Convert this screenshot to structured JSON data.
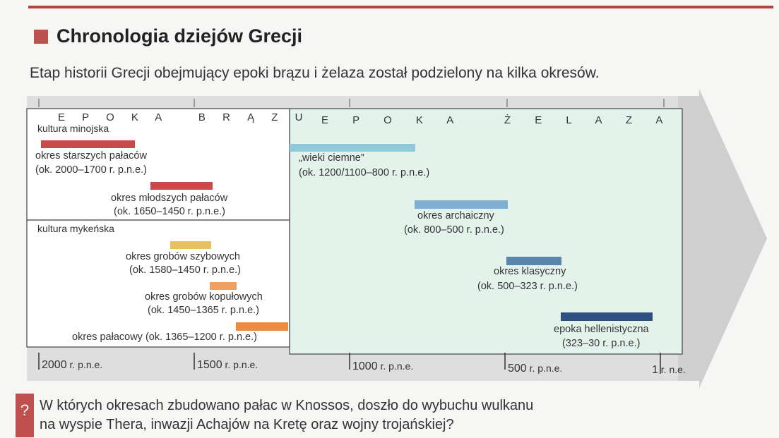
{
  "header": {
    "title": "Chronologia dziejów Grecji",
    "intro": "Etap historii Grecji obejmujący epoki brązu i żelaza został podzielony na kilka okresów."
  },
  "epochs": {
    "bronze": "E P O K A   B R Ą Z U",
    "iron": "E P O K A   Ż E L A Z A"
  },
  "bronze_age": {
    "minoan": {
      "title": "kultura minojska",
      "periods": [
        {
          "name": "okres starszych pałaców",
          "dates": "(ok. 2000–1700 r. p.n.e.)"
        },
        {
          "name": "okres młodszych pałaców",
          "dates": "(ok. 1650–1450 r. p.n.e.)"
        }
      ]
    },
    "mycenaean": {
      "title": "kultura mykeńska",
      "periods": [
        {
          "name": "okres grobów szybowych",
          "dates": "(ok. 1580–1450 r. p.n.e.)"
        },
        {
          "name": "okres grobów kopułowych",
          "dates": "(ok. 1450–1365 r. p.n.e.)"
        },
        {
          "name": "okres pałacowy (ok. 1365–1200 r. p.n.e.)"
        }
      ]
    }
  },
  "iron_age": {
    "periods": [
      {
        "name": "„wieki ciemne”",
        "dates": "(ok. 1200/1100–800 r. p.n.e.)"
      },
      {
        "name": "okres archaiczny",
        "dates": "(ok. 800–500 r. p.n.e.)"
      },
      {
        "name": "okres klasyczny",
        "dates": "(ok. 500–323 r. p.n.e.)"
      },
      {
        "name": "epoka hellenistyczna",
        "dates": "(323–30 r. p.n.e.)"
      }
    ]
  },
  "axis": {
    "ticks": [
      {
        "value": "2000",
        "suffix": " r. p.n.e."
      },
      {
        "value": "1500",
        "suffix": " r. p.n.e."
      },
      {
        "value": "1000",
        "suffix": " r. p.n.e."
      },
      {
        "value": "500",
        "suffix": " r. p.n.e."
      },
      {
        "value": "1",
        "suffix": " r. n.e."
      }
    ]
  },
  "colors": {
    "minoan_bar": "#c8494a",
    "shaft_tombs": "#e8c060",
    "tholos": "#f0a060",
    "palatial": "#f08a3c",
    "dark_ages": "#90c8dc",
    "archaic": "#7fb0d4",
    "classical": "#5a86ad",
    "hellenistic": "#2e4f80",
    "iron_panel": "#e4f2ec",
    "arrow": "#dcdcdc"
  },
  "question": {
    "mark": "?",
    "text_line1": "W których okresach zbudowano pałac w Knossos, doszło do wybuchu wulkanu",
    "text_line2": "na wyspie Thera, inwazji Achajów na Kretę oraz wojny trojańskiej?"
  }
}
